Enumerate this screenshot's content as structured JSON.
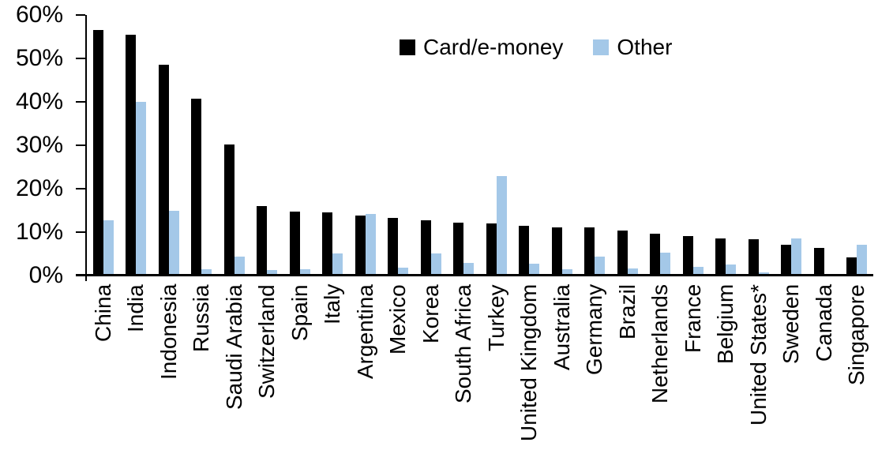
{
  "chart_data": {
    "type": "bar",
    "title": "",
    "xlabel": "",
    "ylabel": "",
    "categories": [
      "China",
      "India",
      "Indonesia",
      "Russia",
      "Saudi Arabia",
      "Switzerland",
      "Spain",
      "Italy",
      "Argentina",
      "Mexico",
      "Korea",
      "South Africa",
      "Turkey",
      "United Kingdom",
      "Australia",
      "Germany",
      "Brazil",
      "Netherlands",
      "France",
      "Belgium",
      "United States*",
      "Sweden",
      "Canada",
      "Singapore"
    ],
    "series": [
      {
        "name": "Card/e-money",
        "color": "#000000",
        "values": [
          56.2,
          55.0,
          48.2,
          40.4,
          29.9,
          15.7,
          14.3,
          14.1,
          13.4,
          12.9,
          12.3,
          11.9,
          11.6,
          11.1,
          10.8,
          10.7,
          10.0,
          9.3,
          8.7,
          8.2,
          8.0,
          6.7,
          6.0,
          3.9
        ]
      },
      {
        "name": "Other",
        "color": "#A4C8E8",
        "values": [
          12.4,
          39.7,
          14.5,
          1.0,
          4.0,
          0.9,
          1.1,
          4.7,
          13.9,
          1.4,
          4.7,
          2.5,
          22.5,
          2.4,
          1.0,
          4.0,
          1.3,
          4.9,
          1.6,
          2.1,
          0.3,
          8.2,
          0.0,
          6.8
        ]
      }
    ],
    "y_axis": {
      "min": 0,
      "max": 60,
      "step": 10,
      "tick_labels": [
        "0%",
        "10%",
        "20%",
        "30%",
        "40%",
        "50%",
        "60%"
      ]
    },
    "legend_position": "top-center",
    "grid": false
  }
}
